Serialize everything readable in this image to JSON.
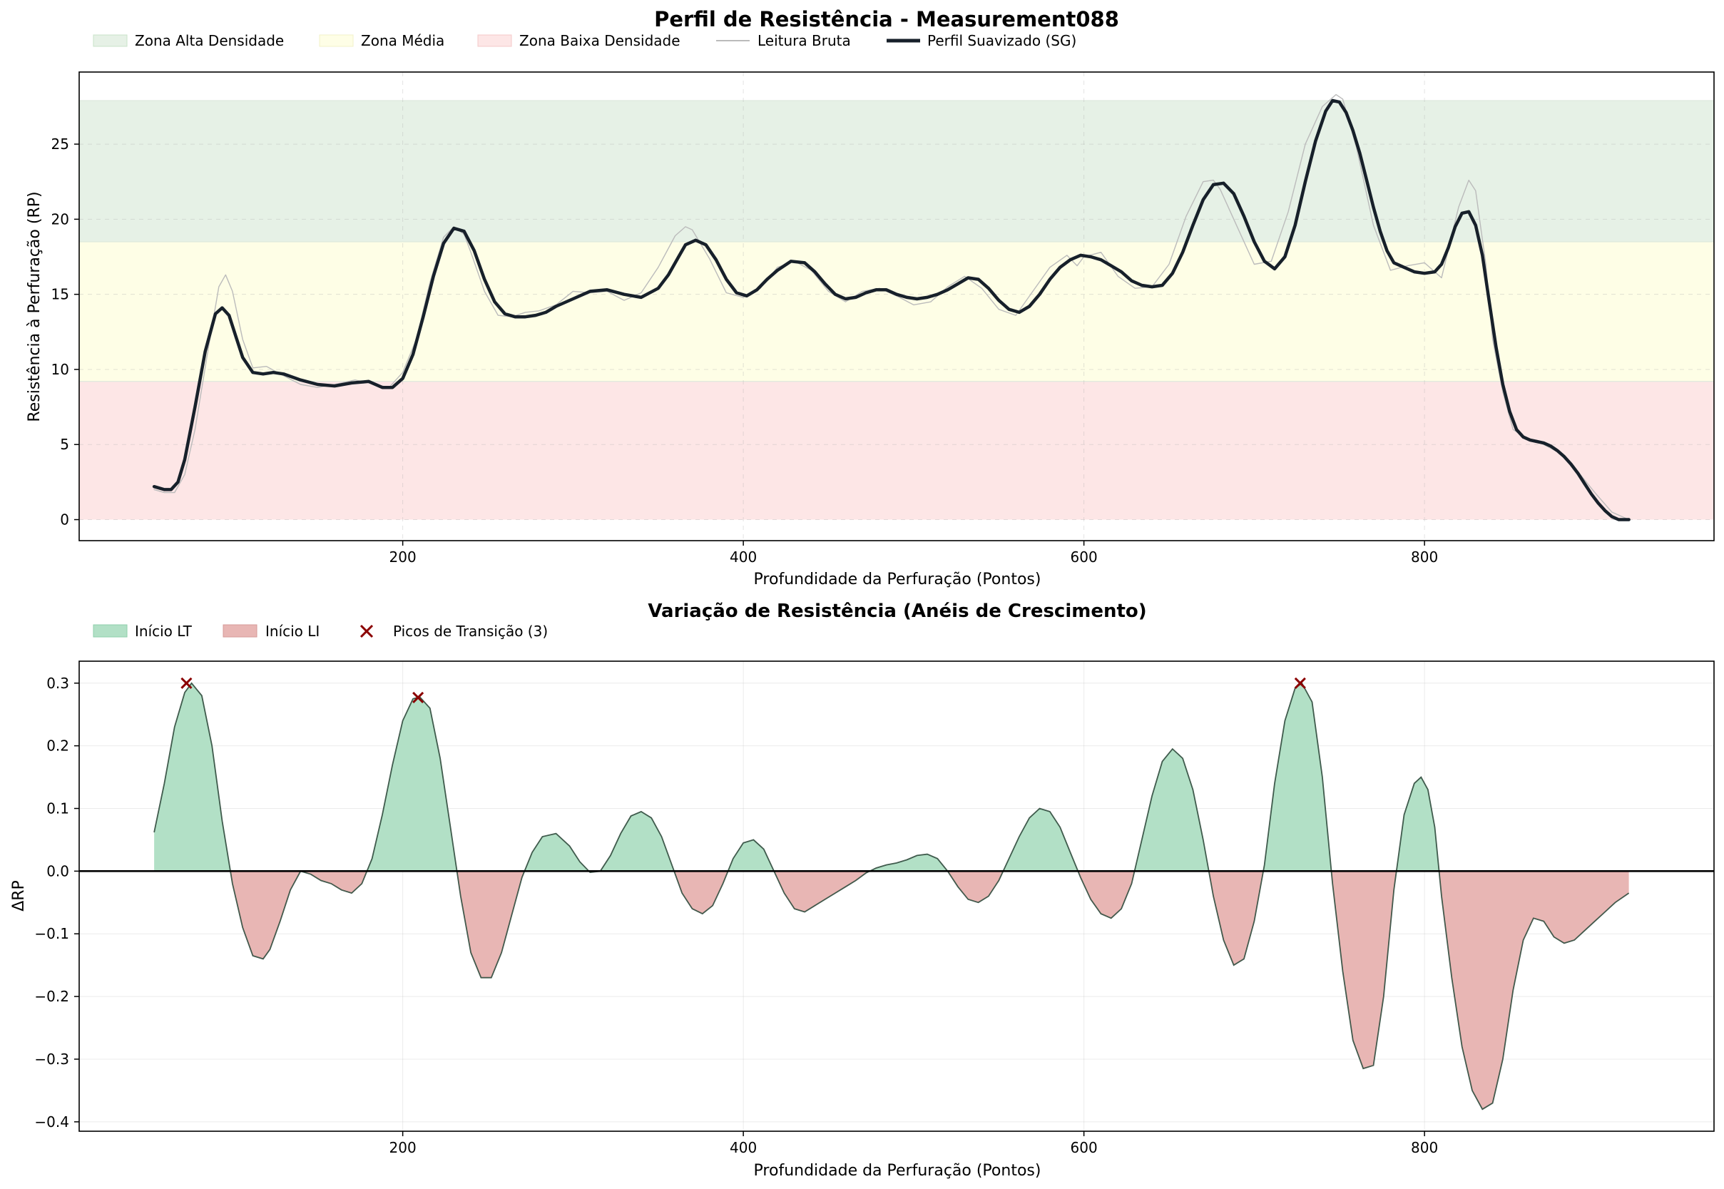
{
  "chart_data": [
    {
      "type": "line",
      "title": "Perfil de Resistência - Measurement088",
      "xlabel": "Profundidade da Perfuração (Pontos)",
      "ylabel": "Resistência à Perfuração (RP)",
      "xlim": [
        10,
        970
      ],
      "ylim": [
        -1.4,
        29.8
      ],
      "xticks": [
        200,
        400,
        600,
        800
      ],
      "yticks": [
        0,
        5,
        10,
        15,
        20,
        25
      ],
      "grid": true,
      "legend_position": "top-left",
      "zones": [
        {
          "name": "Zona Alta Densidade",
          "from": 18.5,
          "to": 27.9,
          "color": "#e6f1e6"
        },
        {
          "name": "Zona Média",
          "from": 9.2,
          "to": 18.5,
          "color": "#fefee6"
        },
        {
          "name": "Zona Baixa Densidade",
          "from": 0,
          "to": 9.2,
          "color": "#fde6e6"
        }
      ],
      "series": [
        {
          "name": "Leitura Bruta",
          "color": "#bbbbbb",
          "x": [
            54,
            60,
            66,
            72,
            78,
            86,
            92,
            96,
            100,
            106,
            112,
            120,
            128,
            140,
            150,
            160,
            172,
            184,
            192,
            200,
            208,
            216,
            224,
            230,
            236,
            240,
            248,
            256,
            264,
            272,
            280,
            290,
            300,
            310,
            320,
            330,
            340,
            350,
            360,
            366,
            370,
            380,
            390,
            400,
            410,
            420,
            430,
            440,
            450,
            460,
            470,
            480,
            490,
            500,
            510,
            520,
            530,
            540,
            550,
            560,
            570,
            580,
            590,
            596,
            600,
            610,
            620,
            630,
            640,
            650,
            660,
            670,
            676,
            680,
            690,
            700,
            710,
            720,
            730,
            740,
            748,
            752,
            760,
            770,
            780,
            790,
            800,
            810,
            820,
            826,
            830,
            836,
            840,
            846,
            852,
            860,
            870,
            880,
            890,
            900,
            910,
            920
          ],
          "y": [
            2.0,
            1.8,
            1.8,
            3.0,
            6.0,
            11.5,
            15.5,
            16.3,
            15.2,
            12.0,
            10.1,
            10.2,
            9.7,
            9.0,
            8.8,
            9.0,
            9.3,
            9.0,
            8.8,
            9.8,
            12.0,
            15.8,
            18.8,
            19.5,
            19.0,
            17.8,
            15.2,
            13.6,
            13.5,
            13.8,
            13.9,
            14.3,
            15.2,
            15.1,
            15.2,
            14.6,
            15.1,
            16.8,
            18.9,
            19.5,
            19.3,
            17.4,
            15.1,
            14.8,
            15.4,
            16.8,
            17.2,
            16.6,
            15.2,
            14.5,
            15.2,
            15.4,
            14.9,
            14.3,
            14.5,
            15.5,
            16.2,
            15.4,
            14.0,
            13.6,
            15.2,
            16.8,
            17.6,
            16.9,
            17.5,
            17.8,
            16.2,
            15.4,
            15.5,
            17.0,
            20.2,
            22.5,
            22.6,
            22.0,
            19.5,
            17.0,
            17.2,
            20.5,
            25.0,
            27.5,
            28.3,
            28.0,
            24.8,
            19.6,
            16.6,
            16.9,
            17.1,
            16.1,
            20.8,
            22.6,
            21.9,
            17.0,
            12.0,
            8.5,
            6.0,
            5.4,
            5.0,
            4.4,
            3.2,
            1.8,
            0.5,
            0.0
          ]
        },
        {
          "name": "Perfil Suavizado (SG)",
          "color": "#17202a",
          "x": [
            54,
            60,
            64,
            68,
            72,
            78,
            84,
            90,
            94,
            98,
            102,
            106,
            112,
            118,
            124,
            130,
            140,
            150,
            160,
            170,
            180,
            188,
            194,
            200,
            206,
            212,
            218,
            224,
            230,
            236,
            242,
            248,
            254,
            260,
            266,
            272,
            278,
            284,
            290,
            300,
            310,
            320,
            330,
            340,
            350,
            356,
            362,
            366,
            372,
            378,
            384,
            390,
            396,
            402,
            408,
            414,
            420,
            428,
            436,
            442,
            448,
            454,
            460,
            466,
            472,
            478,
            484,
            490,
            496,
            502,
            508,
            514,
            520,
            526,
            532,
            538,
            544,
            550,
            556,
            562,
            568,
            574,
            580,
            586,
            592,
            598,
            604,
            610,
            616,
            622,
            628,
            634,
            640,
            646,
            652,
            658,
            664,
            670,
            676,
            682,
            688,
            694,
            700,
            706,
            712,
            718,
            724,
            730,
            736,
            742,
            746,
            750,
            754,
            758,
            762,
            766,
            770,
            774,
            778,
            782,
            788,
            794,
            800,
            806,
            810,
            814,
            818,
            822,
            826,
            830,
            834,
            838,
            842,
            846,
            850,
            854,
            858,
            862,
            866,
            870,
            874,
            878,
            882,
            886,
            890,
            894,
            898,
            902,
            906,
            910,
            914,
            920
          ],
          "y": [
            2.2,
            2.0,
            2.0,
            2.5,
            4.0,
            7.5,
            11.2,
            13.7,
            14.1,
            13.6,
            12.2,
            10.8,
            9.8,
            9.7,
            9.8,
            9.7,
            9.3,
            9.0,
            8.9,
            9.1,
            9.2,
            8.8,
            8.8,
            9.4,
            11.0,
            13.5,
            16.2,
            18.4,
            19.4,
            19.2,
            17.9,
            16.0,
            14.5,
            13.7,
            13.5,
            13.5,
            13.6,
            13.8,
            14.2,
            14.7,
            15.2,
            15.3,
            15.0,
            14.8,
            15.4,
            16.3,
            17.5,
            18.3,
            18.6,
            18.3,
            17.3,
            16.0,
            15.1,
            14.9,
            15.3,
            16.0,
            16.6,
            17.2,
            17.1,
            16.5,
            15.7,
            15.0,
            14.7,
            14.8,
            15.1,
            15.3,
            15.3,
            15.0,
            14.8,
            14.7,
            14.8,
            15.0,
            15.3,
            15.7,
            16.1,
            16.0,
            15.4,
            14.6,
            14.0,
            13.8,
            14.2,
            15.0,
            16.0,
            16.8,
            17.3,
            17.6,
            17.5,
            17.3,
            16.9,
            16.5,
            15.9,
            15.6,
            15.5,
            15.6,
            16.4,
            17.8,
            19.6,
            21.3,
            22.3,
            22.4,
            21.7,
            20.2,
            18.5,
            17.2,
            16.7,
            17.5,
            19.6,
            22.5,
            25.2,
            27.2,
            27.9,
            27.8,
            27.1,
            25.9,
            24.4,
            22.6,
            20.8,
            19.2,
            17.9,
            17.1,
            16.8,
            16.5,
            16.4,
            16.5,
            17.0,
            18.1,
            19.5,
            20.4,
            20.5,
            19.6,
            17.6,
            14.5,
            11.5,
            9.0,
            7.2,
            6.0,
            5.5,
            5.3,
            5.2,
            5.1,
            4.9,
            4.6,
            4.2,
            3.7,
            3.1,
            2.4,
            1.7,
            1.1,
            0.6,
            0.2,
            0.0,
            0.0
          ]
        }
      ]
    },
    {
      "type": "area",
      "title": "Variação de Resistência (Anéis de Crescimento)",
      "xlabel": "Profundidade da Perfuração (Pontos)",
      "ylabel": "ΔRP",
      "xlim": [
        10,
        970
      ],
      "ylim": [
        -0.415,
        0.335
      ],
      "xticks": [
        200,
        400,
        600,
        800
      ],
      "yticks": [
        -0.4,
        -0.3,
        -0.2,
        -0.1,
        0.0,
        0.1,
        0.2,
        0.3
      ],
      "grid": true,
      "legend_position": "top-left",
      "legend": [
        {
          "name": "Início LT",
          "color": "#b2e0c6"
        },
        {
          "name": "Início LI",
          "color": "#e8b6b4"
        },
        {
          "name": "Picos de Transição (3)",
          "color": "#8b0000"
        }
      ],
      "series": [
        {
          "name": "ΔRP",
          "x": [
            54,
            60,
            66,
            72,
            76,
            82,
            88,
            94,
            100,
            106,
            112,
            118,
            122,
            128,
            134,
            140,
            146,
            152,
            158,
            164,
            170,
            176,
            182,
            188,
            194,
            200,
            206,
            210,
            216,
            222,
            228,
            234,
            240,
            246,
            252,
            258,
            264,
            270,
            276,
            282,
            290,
            298,
            304,
            310,
            316,
            322,
            328,
            334,
            340,
            346,
            352,
            358,
            364,
            370,
            376,
            382,
            388,
            394,
            400,
            406,
            412,
            418,
            424,
            430,
            436,
            442,
            448,
            454,
            460,
            466,
            472,
            478,
            484,
            490,
            496,
            502,
            508,
            514,
            520,
            526,
            532,
            538,
            544,
            550,
            556,
            562,
            568,
            574,
            580,
            586,
            592,
            598,
            604,
            610,
            616,
            622,
            628,
            634,
            640,
            646,
            652,
            658,
            664,
            670,
            676,
            682,
            688,
            694,
            700,
            706,
            712,
            718,
            724,
            728,
            734,
            740,
            746,
            752,
            758,
            764,
            770,
            776,
            782,
            788,
            794,
            798,
            802,
            806,
            810,
            816,
            822,
            828,
            834,
            840,
            846,
            852,
            858,
            864,
            870,
            876,
            882,
            888,
            894,
            900,
            906,
            912,
            920
          ],
          "y": [
            0.062,
            0.14,
            0.23,
            0.285,
            0.3,
            0.28,
            0.2,
            0.08,
            -0.02,
            -0.09,
            -0.135,
            -0.14,
            -0.125,
            -0.08,
            -0.03,
            0.0,
            -0.005,
            -0.015,
            -0.02,
            -0.03,
            -0.035,
            -0.02,
            0.02,
            0.09,
            0.17,
            0.24,
            0.275,
            0.278,
            0.26,
            0.18,
            0.07,
            -0.04,
            -0.13,
            -0.17,
            -0.17,
            -0.13,
            -0.07,
            -0.01,
            0.03,
            0.055,
            0.06,
            0.04,
            0.015,
            -0.002,
            0.0,
            0.025,
            0.06,
            0.088,
            0.095,
            0.085,
            0.055,
            0.01,
            -0.035,
            -0.06,
            -0.068,
            -0.055,
            -0.02,
            0.02,
            0.045,
            0.05,
            0.035,
            0.0,
            -0.035,
            -0.06,
            -0.065,
            -0.055,
            -0.045,
            -0.035,
            -0.025,
            -0.015,
            -0.003,
            0.005,
            0.01,
            0.013,
            0.018,
            0.025,
            0.027,
            0.02,
            0.0,
            -0.025,
            -0.045,
            -0.05,
            -0.04,
            -0.015,
            0.02,
            0.055,
            0.085,
            0.1,
            0.095,
            0.07,
            0.03,
            -0.01,
            -0.045,
            -0.068,
            -0.075,
            -0.06,
            -0.02,
            0.05,
            0.12,
            0.175,
            0.195,
            0.18,
            0.13,
            0.05,
            -0.04,
            -0.11,
            -0.15,
            -0.14,
            -0.08,
            0.01,
            0.14,
            0.24,
            0.292,
            0.3,
            0.27,
            0.15,
            -0.02,
            -0.16,
            -0.27,
            -0.315,
            -0.31,
            -0.2,
            -0.03,
            0.09,
            0.14,
            0.15,
            0.13,
            0.07,
            -0.04,
            -0.17,
            -0.28,
            -0.35,
            -0.38,
            -0.37,
            -0.3,
            -0.19,
            -0.11,
            -0.075,
            -0.08,
            -0.105,
            -0.115,
            -0.11,
            -0.095,
            -0.08,
            -0.065,
            -0.05,
            -0.035
          ]
        }
      ],
      "peaks": {
        "x": [
          73,
          209,
          727
        ],
        "y": [
          0.3,
          0.277,
          0.3
        ]
      }
    }
  ]
}
